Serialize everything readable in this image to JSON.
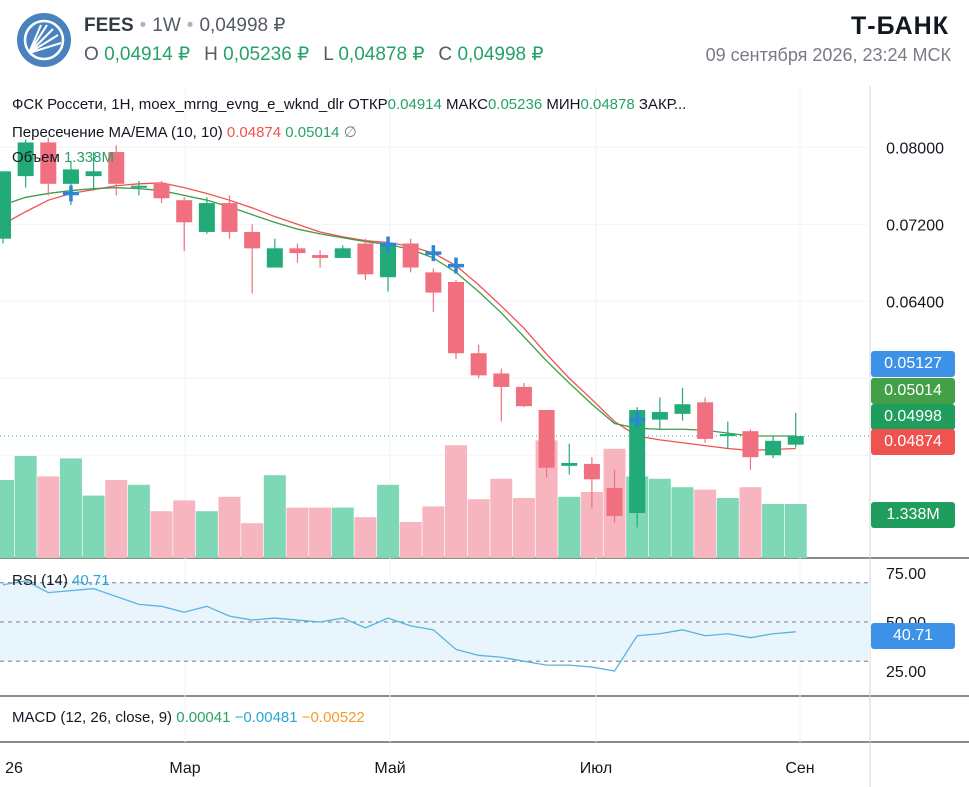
{
  "header": {
    "symbol": "FEES",
    "interval": "1W",
    "last_price": "0,04998 ₽",
    "ohlc": {
      "open_label": "O",
      "open": "0,04914 ₽",
      "high_label": "H",
      "high": "0,05236 ₽",
      "low_label": "L",
      "low": "0,04878 ₽",
      "close_label": "C",
      "close": "0,04998 ₽"
    },
    "brand": "Т-БАНК",
    "datetime": "09 сентября 2026, 23:24 МСК"
  },
  "legend": {
    "title": "ФСК Россети, 1Н, moex_mrng_evng_e_wknd_dlr",
    "open_label": "ОТКР",
    "open": "0.04914",
    "high_label": "МАКС",
    "high": "0.05236",
    "low_label": "МИН",
    "low": "0.04878",
    "close_label": "ЗАКР...",
    "ma_title": "Пересечение MA/EMA (10, 10)",
    "ma_value": "0.04874",
    "ema_value": "0.05014",
    "ma_extra": "∅",
    "volume_title": "Объем",
    "volume_value": "1.338M",
    "rsi_title": "RSI (14)",
    "rsi_value": "40.71",
    "macd_title": "MACD (12, 26, close, 9)",
    "macd_hist": "0.00041",
    "macd_line": "−0.00481",
    "macd_signal": "−0.00522"
  },
  "price_tags": {
    "a": "0.05127",
    "ema": "0.05014",
    "last": "0.04998",
    "ma": "0.04874",
    "volume": "1.338M",
    "rsi": "40.71"
  },
  "colors": {
    "up": "#22ab78",
    "down": "#f0707f",
    "vol_up": "#7ed8b6",
    "vol_down": "#f7b5c0",
    "ma": "#ef5350",
    "ema": "#3e9c46",
    "rsi": "#5ab4e0",
    "cross": "#2a86d6",
    "tag_blue": "#3d92e8",
    "tag_green_light": "#43a047",
    "tag_green": "#1f9d5c",
    "tag_red": "#ef5350"
  },
  "chart_data": {
    "type": "candlestick",
    "price_axis": {
      "min": 0.046,
      "max": 0.082,
      "ticks": [
        "0.08000",
        "0.07200",
        "0.06400"
      ]
    },
    "rsi_axis": {
      "min": 20,
      "max": 80,
      "ticks": [
        "75.00",
        "50.00",
        "25.00"
      ]
    },
    "time_labels": [
      "26",
      "Мар",
      "Май",
      "Июл",
      "Сен"
    ],
    "candles": [
      {
        "o": 0.0705,
        "h": 0.0775,
        "l": 0.07,
        "c": 0.0775
      },
      {
        "o": 0.077,
        "h": 0.0808,
        "l": 0.0758,
        "c": 0.0805
      },
      {
        "o": 0.0805,
        "h": 0.081,
        "l": 0.075,
        "c": 0.0762
      },
      {
        "o": 0.0762,
        "h": 0.0785,
        "l": 0.074,
        "c": 0.0777
      },
      {
        "o": 0.077,
        "h": 0.0795,
        "l": 0.0755,
        "c": 0.0775
      },
      {
        "o": 0.0795,
        "h": 0.0802,
        "l": 0.075,
        "c": 0.0762
      },
      {
        "o": 0.076,
        "h": 0.0765,
        "l": 0.075,
        "c": 0.076
      },
      {
        "o": 0.0762,
        "h": 0.0765,
        "l": 0.0742,
        "c": 0.0747
      },
      {
        "o": 0.0745,
        "h": 0.0748,
        "l": 0.0692,
        "c": 0.0722
      },
      {
        "o": 0.0712,
        "h": 0.0748,
        "l": 0.071,
        "c": 0.0742
      },
      {
        "o": 0.0742,
        "h": 0.075,
        "l": 0.0705,
        "c": 0.0712
      },
      {
        "o": 0.0712,
        "h": 0.072,
        "l": 0.0648,
        "c": 0.0695
      },
      {
        "o": 0.0675,
        "h": 0.0705,
        "l": 0.0675,
        "c": 0.0695
      },
      {
        "o": 0.0695,
        "h": 0.07,
        "l": 0.068,
        "c": 0.069
      },
      {
        "o": 0.0688,
        "h": 0.0693,
        "l": 0.0675,
        "c": 0.0685
      },
      {
        "o": 0.0685,
        "h": 0.0698,
        "l": 0.0685,
        "c": 0.0695
      },
      {
        "o": 0.07,
        "h": 0.0705,
        "l": 0.0662,
        "c": 0.0668
      },
      {
        "o": 0.0665,
        "h": 0.0705,
        "l": 0.065,
        "c": 0.07
      },
      {
        "o": 0.07,
        "h": 0.0705,
        "l": 0.067,
        "c": 0.0675
      },
      {
        "o": 0.067,
        "h": 0.0674,
        "l": 0.0629,
        "c": 0.0649
      },
      {
        "o": 0.066,
        "h": 0.0662,
        "l": 0.058,
        "c": 0.0586
      },
      {
        "o": 0.0586,
        "h": 0.0595,
        "l": 0.056,
        "c": 0.0563
      },
      {
        "o": 0.0565,
        "h": 0.057,
        "l": 0.0515,
        "c": 0.0551
      },
      {
        "o": 0.0551,
        "h": 0.0555,
        "l": 0.053,
        "c": 0.0531
      },
      {
        "o": 0.0527,
        "h": 0.0527,
        "l": 0.0457,
        "c": 0.0467
      },
      {
        "o": 0.0469,
        "h": 0.0492,
        "l": 0.046,
        "c": 0.0472
      },
      {
        "o": 0.0471,
        "h": 0.0478,
        "l": 0.0425,
        "c": 0.0455
      },
      {
        "o": 0.0446,
        "h": 0.0465,
        "l": 0.041,
        "c": 0.0417
      },
      {
        "o": 0.042,
        "h": 0.053,
        "l": 0.0405,
        "c": 0.0527
      },
      {
        "o": 0.0517,
        "h": 0.054,
        "l": 0.0507,
        "c": 0.0525
      },
      {
        "o": 0.0523,
        "h": 0.055,
        "l": 0.0516,
        "c": 0.0533
      },
      {
        "o": 0.0535,
        "h": 0.054,
        "l": 0.0493,
        "c": 0.0497
      },
      {
        "o": 0.0502,
        "h": 0.0515,
        "l": 0.0487,
        "c": 0.0502
      },
      {
        "o": 0.0505,
        "h": 0.0507,
        "l": 0.0465,
        "c": 0.0478
      },
      {
        "o": 0.048,
        "h": 0.05,
        "l": 0.0477,
        "c": 0.0495
      },
      {
        "o": 0.0491,
        "h": 0.0524,
        "l": 0.0488,
        "c": 0.05
      }
    ],
    "volume_relative": [
      0.65,
      0.85,
      0.68,
      0.83,
      0.52,
      0.65,
      0.61,
      0.39,
      0.48,
      0.39,
      0.51,
      0.29,
      0.69,
      0.42,
      0.42,
      0.42,
      0.34,
      0.61,
      0.3,
      0.43,
      0.94,
      0.49,
      0.66,
      0.5,
      0.98,
      0.51,
      0.55,
      0.91,
      0.68,
      0.66,
      0.59,
      0.57,
      0.5,
      0.59,
      0.45,
      0.45
    ],
    "ma_line": [
      0.072,
      0.0733,
      0.0745,
      0.0752,
      0.0756,
      0.076,
      0.0762,
      0.0763,
      0.0758,
      0.0752,
      0.0745,
      0.0737,
      0.0728,
      0.072,
      0.0712,
      0.0707,
      0.0703,
      0.0701,
      0.0697,
      0.069,
      0.0677,
      0.0657,
      0.0635,
      0.0612,
      0.0585,
      0.056,
      0.0538,
      0.0515,
      0.05,
      0.0496,
      0.0493,
      0.049,
      0.0487,
      0.0485,
      0.0486,
      0.0487
    ],
    "ema_line": [
      0.074,
      0.0748,
      0.0752,
      0.0755,
      0.0757,
      0.0758,
      0.0757,
      0.0755,
      0.075,
      0.0745,
      0.0738,
      0.073,
      0.0722,
      0.0715,
      0.071,
      0.0706,
      0.0702,
      0.0699,
      0.0694,
      0.0685,
      0.067,
      0.065,
      0.0628,
      0.0603,
      0.0578,
      0.0555,
      0.0533,
      0.0513,
      0.0508,
      0.0507,
      0.0507,
      0.0506,
      0.0503,
      0.05,
      0.05,
      0.05
    ],
    "cross_points": [
      {
        "index": 3,
        "value": 0.0752
      },
      {
        "index": 17,
        "value": 0.0699
      },
      {
        "index": 19,
        "value": 0.069
      },
      {
        "index": 20,
        "value": 0.0677
      },
      {
        "index": 28,
        "value": 0.0517
      }
    ],
    "rsi_values": [
      69,
      71,
      65,
      66,
      67,
      63,
      59,
      58,
      55,
      58,
      53,
      51,
      52,
      51,
      50,
      52,
      47,
      52,
      48,
      46,
      36,
      33,
      32,
      30,
      28,
      28,
      27,
      25,
      43,
      44,
      46,
      43,
      44,
      42,
      44,
      45
    ]
  }
}
